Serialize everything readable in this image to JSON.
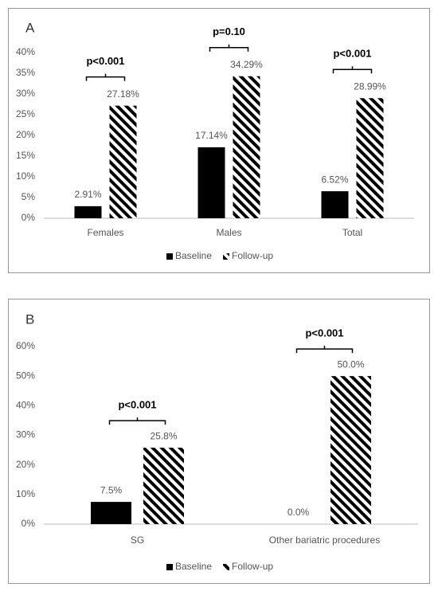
{
  "chart_data": [
    {
      "type": "bar",
      "title": "A",
      "categories": [
        "Females",
        "Males",
        "Total"
      ],
      "series": [
        {
          "name": "Baseline",
          "color": "#000000",
          "values": [
            2.91,
            17.14,
            6.52
          ],
          "value_labels": [
            "2.91%",
            "17.14%",
            "6.52%"
          ]
        },
        {
          "name": "Follow-up",
          "color": "#000000",
          "hatch": true,
          "values": [
            27.18,
            34.29,
            28.99
          ],
          "value_labels": [
            "27.18%",
            "34.29%",
            "28.99%"
          ]
        }
      ],
      "annotations": [
        "p<0.001",
        "p=0.10",
        "p<0.001"
      ],
      "ylim": [
        0,
        40
      ],
      "yticks": [
        {
          "value": 0,
          "label": "0%"
        },
        {
          "value": 5,
          "label": "5%"
        },
        {
          "value": 10,
          "label": "10%"
        },
        {
          "value": 15,
          "label": "15%"
        },
        {
          "value": 20,
          "label": "20%"
        },
        {
          "value": 25,
          "label": "25%"
        },
        {
          "value": 30,
          "label": "30%"
        },
        {
          "value": 35,
          "label": "35%"
        },
        {
          "value": 40,
          "label": "40%"
        }
      ],
      "legend": "bottom"
    },
    {
      "type": "bar",
      "title": "B",
      "categories": [
        "SG",
        "Other bariatric procedures"
      ],
      "series": [
        {
          "name": "Baseline",
          "color": "#000000",
          "values": [
            7.5,
            0.0
          ],
          "value_labels": [
            "7.5%",
            "0.0%"
          ]
        },
        {
          "name": "Follow-up",
          "color": "#000000",
          "hatch": true,
          "values": [
            25.8,
            50.0
          ],
          "value_labels": [
            "25.8%",
            "50.0%"
          ]
        }
      ],
      "annotations": [
        "p<0.001",
        "p<0.001"
      ],
      "ylim": [
        0,
        60
      ],
      "yticks": [
        {
          "value": 0,
          "label": "0%"
        },
        {
          "value": 10,
          "label": "10%"
        },
        {
          "value": 20,
          "label": "20%"
        },
        {
          "value": 30,
          "label": "30%"
        },
        {
          "value": 40,
          "label": "40%"
        },
        {
          "value": 50,
          "label": "50%"
        },
        {
          "value": 60,
          "label": "60%"
        }
      ],
      "legend": "bottom"
    }
  ]
}
